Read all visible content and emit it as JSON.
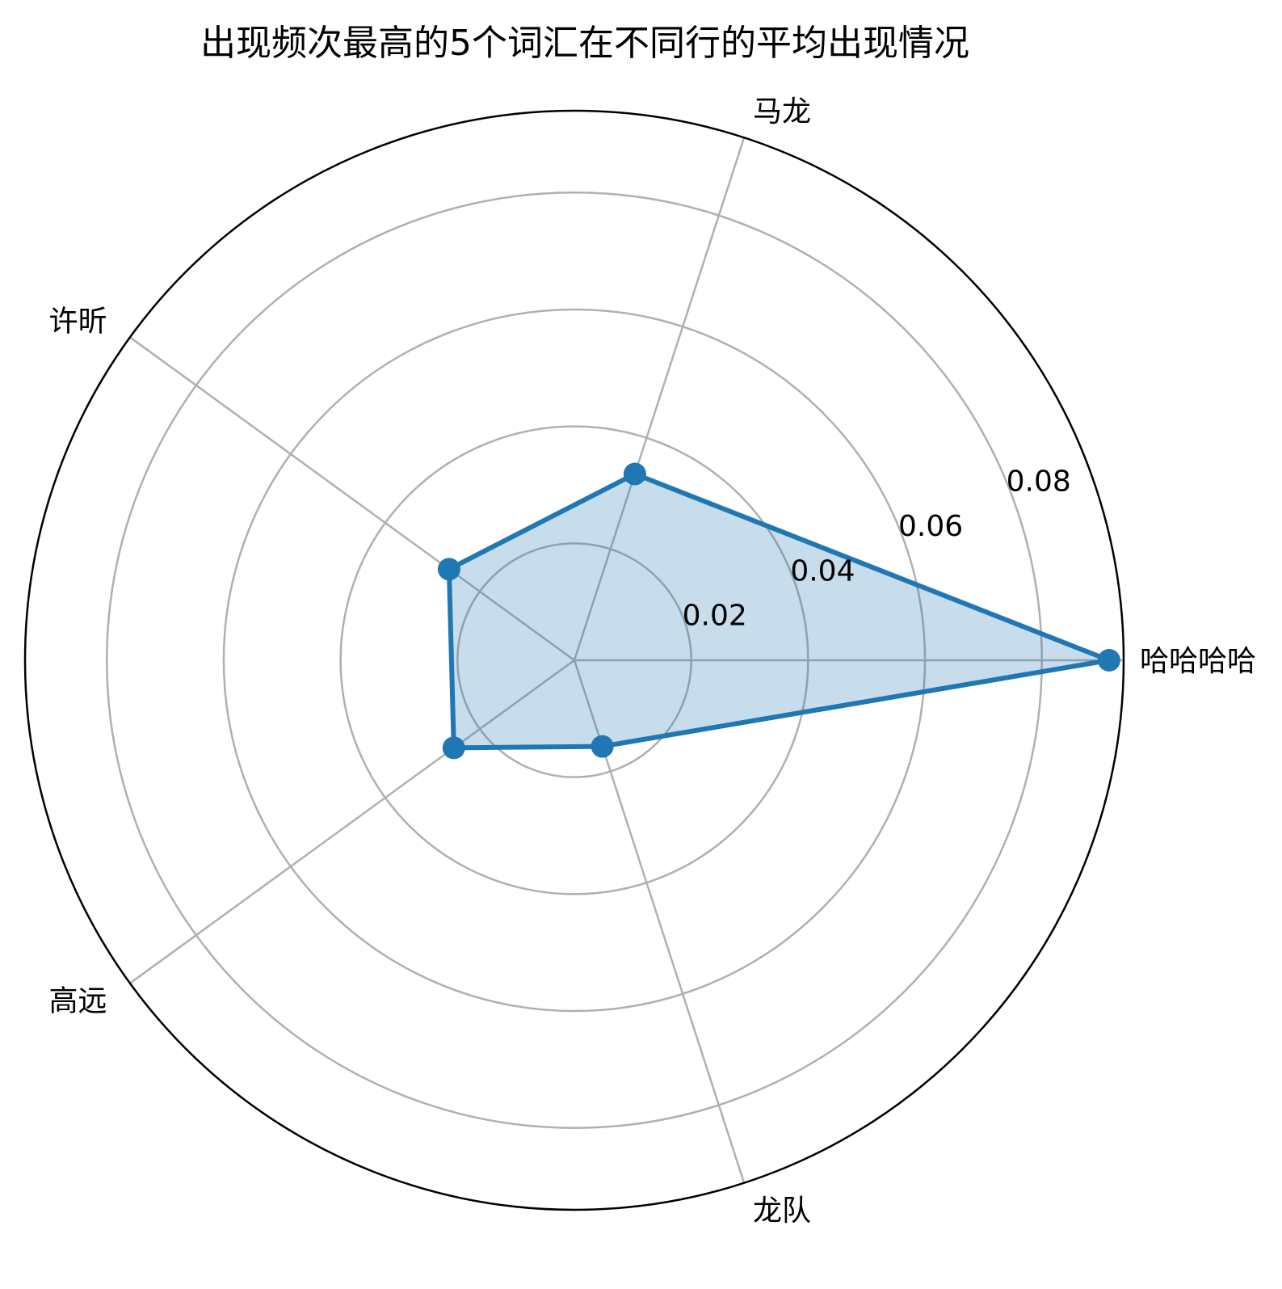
{
  "chart_data": {
    "type": "radar",
    "title": "出现频次最高的5个词汇在不同行的平均出现情况",
    "categories": [
      "哈哈哈哈",
      "马龙",
      "许昕",
      "高远",
      "龙队"
    ],
    "series": [
      {
        "values": [
          0.0915,
          0.0335,
          0.0265,
          0.0255,
          0.0155
        ]
      }
    ],
    "rticks": [
      0.02,
      0.04,
      0.06,
      0.08
    ],
    "rtick_labels": [
      "0.02",
      "0.04",
      "0.06",
      "0.08"
    ],
    "rlim": [
      0,
      0.094
    ],
    "grid": true,
    "colors": {
      "line": "#1f77b4",
      "fill": "#1f77b4",
      "grid": "#b0b0b0",
      "outer": "#000000"
    }
  }
}
